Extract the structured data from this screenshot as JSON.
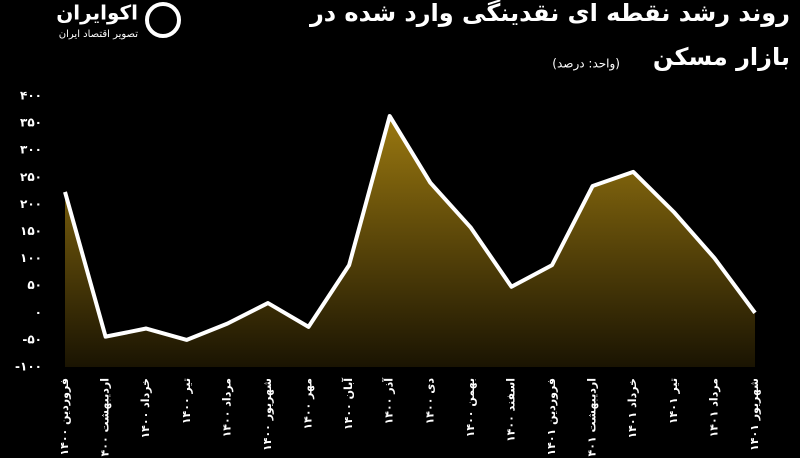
{
  "logo": {
    "name": "اکوایران",
    "tagline": "تصویر اقتصاد ایران"
  },
  "chart_data": {
    "type": "area",
    "title": [
      "روند رشد نقطه ای نقدینگی وارد شده در",
      "بازار مسکن"
    ],
    "subtitle": "(واحد: درصد)",
    "categories": [
      "فروردین ۱۴۰۰",
      "اردیبهشت ۱۴۰۰",
      "خرداد ۱۴۰۰",
      "تیر ۱۴۰۰",
      "مرداد ۱۴۰۰",
      "شهریور ۱۴۰۰",
      "مهر ۱۴۰۰",
      "آبان ۱۴۰۰",
      "آذر ۱۴۰۰",
      "دی ۱۴۰۰",
      "بهمن ۱۴۰۰",
      "اسفند ۱۴۰۰",
      "فروردین ۱۴۰۱",
      "اردیبهشت ۱۴۰۱",
      "خرداد ۱۴۰۱",
      "تیر ۱۴۰۱",
      "مرداد ۱۴۰۱",
      "شهریور ۱۴۰۱"
    ],
    "values": [
      223,
      -44,
      -29,
      -50,
      -20,
      18,
      -26,
      88,
      363,
      240,
      157,
      48,
      88,
      234,
      260,
      186,
      101,
      0
    ],
    "color": "#ffffff",
    "fill": "#9a7810",
    "ylim": [
      -100,
      400
    ],
    "yticks": [
      {
        "value": -100,
        "label": "-۱۰۰"
      },
      {
        "value": -50,
        "label": "-۵۰"
      },
      {
        "value": 0,
        "label": "۰"
      },
      {
        "value": 50,
        "label": "۵۰"
      },
      {
        "value": 100,
        "label": "۱۰۰"
      },
      {
        "value": 150,
        "label": "۱۵۰"
      },
      {
        "value": 200,
        "label": "۲۰۰"
      },
      {
        "value": 250,
        "label": "۲۵۰"
      },
      {
        "value": 300,
        "label": "۳۰۰"
      },
      {
        "value": 350,
        "label": "۳۵۰"
      },
      {
        "value": 400,
        "label": "۴۰۰"
      }
    ],
    "grid": false
  }
}
